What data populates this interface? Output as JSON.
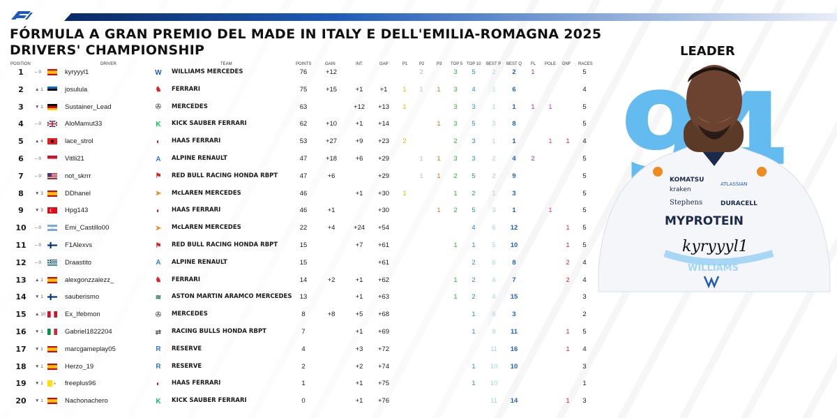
{
  "header": {
    "title": "FÓRMULA A GRAN PREMIO DEL MADE IN ITALY E DELL'EMILIA-ROMAGNA 2025",
    "subtitle": "DRIVERS' CHAMPIONSHIP",
    "leader_label": "LEADER",
    "leader_number": "94",
    "leader_signature": "kyryyyl1",
    "leader_team_tag": "WILLIAMS"
  },
  "columns": {
    "position": "POSITION",
    "driver": "DRIVER",
    "team": "TEAM",
    "points": "POINTS",
    "gain": "GAIN",
    "int": "INT.",
    "gap": "GAP",
    "p1": "P1",
    "p2": "P2",
    "p3": "P3",
    "top5": "TOP 5",
    "top10": "TOP 10",
    "best_p": "BEST P",
    "best_q": "BEST Q",
    "fl": "FL",
    "pole": "POLE",
    "dnf": "DNF",
    "races": "RACES"
  },
  "colors": {
    "p1": "#e6b800",
    "p2": "#bbbbbb",
    "p3": "#c67a1e",
    "top5": "#28b828",
    "top10": "#2d87d6",
    "best_p": "#9fd6e6",
    "best_q": "#1f5fc0",
    "fl": "#9b30c8",
    "pole": "#d83aa8",
    "dnf": "#d8262b",
    "brand": "#1e5bb8",
    "leader_number": "#5bb8f0"
  },
  "rows": [
    {
      "pos": "1",
      "chg": "– 0",
      "flag": "es",
      "driver": "kyryyyl1",
      "team_icon": "williams",
      "team": "WILLIAMS MERCEDES",
      "points": "76",
      "gain": "+12",
      "int": "",
      "gap": "",
      "p1": "",
      "p2": "2",
      "p3": "",
      "top5": "3",
      "top10": "5",
      "best_p": "2",
      "best_q": "2",
      "fl": "1",
      "pole": "",
      "dnf": "",
      "races": "5"
    },
    {
      "pos": "2",
      "chg": "▲ 1",
      "flag": "ee",
      "driver": "josulula",
      "team_icon": "ferrari",
      "team": "FERRARI",
      "points": "75",
      "gain": "+15",
      "int": "+1",
      "gap": "+1",
      "p1": "1",
      "p2": "1",
      "p3": "1",
      "top5": "3",
      "top10": "4",
      "best_p": "1",
      "best_q": "6",
      "fl": "",
      "pole": "",
      "dnf": "",
      "races": "4"
    },
    {
      "pos": "3",
      "chg": "▼ 1",
      "flag": "de",
      "driver": "Sustainer_Lead",
      "team_icon": "mercedes",
      "team": "MERCEDES",
      "points": "63",
      "gain": "",
      "int": "+12",
      "gap": "+13",
      "p1": "1",
      "p2": "",
      "p3": "",
      "top5": "3",
      "top10": "3",
      "best_p": "1",
      "best_q": "1",
      "fl": "1",
      "pole": "1",
      "dnf": "",
      "races": "5"
    },
    {
      "pos": "4",
      "chg": "– 0",
      "flag": "gb",
      "driver": "AloMamut33",
      "team_icon": "kick",
      "team": "KICK SAUBER FERRARI",
      "points": "62",
      "gain": "+10",
      "int": "+1",
      "gap": "+14",
      "p1": "",
      "p2": "",
      "p3": "1",
      "top5": "3",
      "top10": "5",
      "best_p": "3",
      "best_q": "8",
      "fl": "",
      "pole": "",
      "dnf": "",
      "races": "5"
    },
    {
      "pos": "5",
      "chg": "▲ 4",
      "flag": "al",
      "driver": "lace_strol",
      "team_icon": "haas",
      "team": "HAAS FERRARI",
      "points": "53",
      "gain": "+27",
      "int": "+9",
      "gap": "+23",
      "p1": "2",
      "p2": "",
      "p3": "",
      "top5": "2",
      "top10": "3",
      "best_p": "1",
      "best_q": "1",
      "fl": "",
      "pole": "1",
      "dnf": "1",
      "races": "4"
    },
    {
      "pos": "6",
      "chg": "– 0",
      "flag": "id",
      "driver": "Vitlli21",
      "team_icon": "alpine",
      "team": "ALPINE RENAULT",
      "points": "47",
      "gain": "+18",
      "int": "+6",
      "gap": "+29",
      "p1": "",
      "p2": "1",
      "p3": "1",
      "top5": "3",
      "top10": "3",
      "best_p": "2",
      "best_q": "4",
      "fl": "2",
      "pole": "",
      "dnf": "",
      "races": "5"
    },
    {
      "pos": "7",
      "chg": "– 0",
      "flag": "us",
      "driver": "not_skrrr",
      "team_icon": "redbull",
      "team": "RED BULL RACING HONDA RBPT",
      "points": "47",
      "gain": "+6",
      "int": "",
      "gap": "+29",
      "p1": "",
      "p2": "1",
      "p3": "1",
      "top5": "2",
      "top10": "5",
      "best_p": "2",
      "best_q": "9",
      "fl": "",
      "pole": "",
      "dnf": "",
      "races": "5"
    },
    {
      "pos": "8",
      "chg": "▼ 3",
      "flag": "es",
      "driver": "DDhanel",
      "team_icon": "mclaren",
      "team": "McLAREN MERCEDES",
      "points": "46",
      "gain": "",
      "int": "+1",
      "gap": "+30",
      "p1": "1",
      "p2": "",
      "p3": "",
      "top5": "1",
      "top10": "2",
      "best_p": "1",
      "best_q": "3",
      "fl": "",
      "pole": "",
      "dnf": "",
      "races": "5"
    },
    {
      "pos": "9",
      "chg": "▼ 3",
      "flag": "tr",
      "driver": "Hpg143",
      "team_icon": "haas",
      "team": "HAAS FERRARI",
      "points": "46",
      "gain": "+1",
      "int": "",
      "gap": "+30",
      "p1": "",
      "p2": "",
      "p3": "1",
      "top5": "2",
      "top10": "5",
      "best_p": "3",
      "best_q": "1",
      "fl": "",
      "pole": "1",
      "dnf": "",
      "races": "5"
    },
    {
      "pos": "10",
      "chg": "– 0",
      "flag": "ar",
      "driver": "Emi_Castillo00",
      "team_icon": "mclaren",
      "team": "McLAREN MERCEDES",
      "points": "22",
      "gain": "+4",
      "int": "+24",
      "gap": "+54",
      "p1": "",
      "p2": "",
      "p3": "",
      "top5": "",
      "top10": "4",
      "best_p": "6",
      "best_q": "12",
      "fl": "",
      "pole": "",
      "dnf": "1",
      "races": "5"
    },
    {
      "pos": "11",
      "chg": "– 0",
      "flag": "fi",
      "driver": "F1Alexvs",
      "team_icon": "redbull",
      "team": "RED BULL RACING HONDA RBPT",
      "points": "15",
      "gain": "",
      "int": "+7",
      "gap": "+61",
      "p1": "",
      "p2": "",
      "p3": "",
      "top5": "1",
      "top10": "1",
      "best_p": "5",
      "best_q": "10",
      "fl": "",
      "pole": "",
      "dnf": "1",
      "races": "5"
    },
    {
      "pos": "12",
      "chg": "– 0",
      "flag": "gr",
      "driver": "Draastito",
      "team_icon": "alpine",
      "team": "ALPINE RENAULT",
      "points": "15",
      "gain": "",
      "int": "",
      "gap": "+61",
      "p1": "",
      "p2": "",
      "p3": "",
      "top5": "",
      "top10": "2",
      "best_p": "6",
      "best_q": "8",
      "fl": "",
      "pole": "",
      "dnf": "2",
      "races": "4"
    },
    {
      "pos": "13",
      "chg": "▲ 1",
      "flag": "es",
      "driver": "alexgonzzalezz_",
      "team_icon": "ferrari",
      "team": "FERRARI",
      "points": "14",
      "gain": "+2",
      "int": "+1",
      "gap": "+62",
      "p1": "",
      "p2": "",
      "p3": "",
      "top5": "1",
      "top10": "2",
      "best_p": "4",
      "best_q": "7",
      "fl": "",
      "pole": "",
      "dnf": "2",
      "races": "4"
    },
    {
      "pos": "14",
      "chg": "▼ 1",
      "flag": "fi",
      "driver": "sauberismo",
      "team_icon": "aston",
      "team": "ASTON MARTIN ARAMCO MERCEDES",
      "points": "13",
      "gain": "",
      "int": "+1",
      "gap": "+63",
      "p1": "",
      "p2": "",
      "p3": "",
      "top5": "1",
      "top10": "2",
      "best_p": "4",
      "best_q": "15",
      "fl": "",
      "pole": "",
      "dnf": "",
      "races": "3"
    },
    {
      "pos": "15",
      "chg": "▲ 10",
      "flag": "pe",
      "driver": "Ex_Ifebmon",
      "team_icon": "mercedes",
      "team": "MERCEDES",
      "points": "8",
      "gain": "+8",
      "int": "+5",
      "gap": "+68",
      "p1": "",
      "p2": "",
      "p3": "",
      "top5": "",
      "top10": "1",
      "best_p": "6",
      "best_q": "3",
      "fl": "",
      "pole": "",
      "dnf": "",
      "races": "2"
    },
    {
      "pos": "16",
      "chg": "▼ 1",
      "flag": "it",
      "driver": "Gabriel1822204",
      "team_icon": "rb",
      "team": "RACING BULLS HONDA RBPT",
      "points": "7",
      "gain": "",
      "int": "+1",
      "gap": "+69",
      "p1": "",
      "p2": "",
      "p3": "",
      "top5": "",
      "top10": "1",
      "best_p": "9",
      "best_q": "11",
      "fl": "",
      "pole": "",
      "dnf": "1",
      "races": "5"
    },
    {
      "pos": "17",
      "chg": "▼ 1",
      "flag": "es",
      "driver": "marcgameplay05",
      "team_icon": "reserve",
      "team": "RESERVE",
      "points": "4",
      "gain": "",
      "int": "+3",
      "gap": "+72",
      "p1": "",
      "p2": "",
      "p3": "",
      "top5": "",
      "top10": "",
      "best_p": "11",
      "best_q": "16",
      "fl": "",
      "pole": "",
      "dnf": "1",
      "races": "4"
    },
    {
      "pos": "18",
      "chg": "▼ 1",
      "flag": "es",
      "driver": "Herzo_19",
      "team_icon": "reserve",
      "team": "RESERVE",
      "points": "2",
      "gain": "",
      "int": "+2",
      "gap": "+74",
      "p1": "",
      "p2": "",
      "p3": "",
      "top5": "",
      "top10": "1",
      "best_p": "10",
      "best_q": "10",
      "fl": "",
      "pole": "",
      "dnf": "",
      "races": "3"
    },
    {
      "pos": "19",
      "chg": "▼ 1",
      "flag": "va",
      "driver": "freeplus96",
      "team_icon": "haas",
      "team": "HAAS FERRARI",
      "points": "1",
      "gain": "",
      "int": "+1",
      "gap": "+75",
      "p1": "",
      "p2": "",
      "p3": "",
      "top5": "",
      "top10": "1",
      "best_p": "10",
      "best_q": "",
      "fl": "",
      "pole": "",
      "dnf": "",
      "races": "1"
    },
    {
      "pos": "20",
      "chg": "▼ 1",
      "flag": "es",
      "driver": "Nachonachero",
      "team_icon": "kick",
      "team": "KICK SAUBER FERRARI",
      "points": "0",
      "gain": "",
      "int": "+1",
      "gap": "+76",
      "p1": "",
      "p2": "",
      "p3": "",
      "top5": "",
      "top10": "",
      "best_p": "11",
      "best_q": "14",
      "fl": "",
      "pole": "",
      "dnf": "1",
      "races": "3"
    }
  ]
}
